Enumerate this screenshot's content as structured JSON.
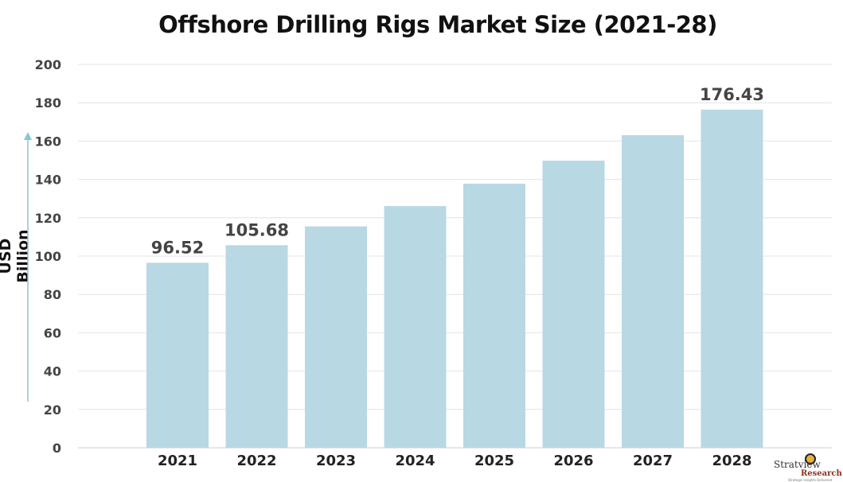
{
  "chart_data": {
    "type": "bar",
    "title": "Offshore Drilling Rigs Market Size (2021-28)",
    "ylabel": "USD Billion",
    "xlabel": "",
    "categories": [
      "2021",
      "2022",
      "2023",
      "2024",
      "2025",
      "2026",
      "2027",
      "2028"
    ],
    "values": [
      96.52,
      105.68,
      115.5,
      126.1,
      137.8,
      149.8,
      163.1,
      176.43
    ],
    "data_labels": {
      "0": "96.52",
      "1": "105.68",
      "7": "176.43"
    },
    "ylim": [
      0,
      200
    ],
    "yticks": [
      "0",
      "20",
      "40",
      "60",
      "80",
      "100",
      "120",
      "140",
      "160",
      "180",
      "200"
    ],
    "grid": true,
    "bar_color": "#b8d8e4",
    "axis_arrow_color": "#8cc4d4"
  },
  "logo": {
    "name": "Stratview",
    "sub": "Research",
    "tagline": "Strategic Insights Delivered"
  }
}
